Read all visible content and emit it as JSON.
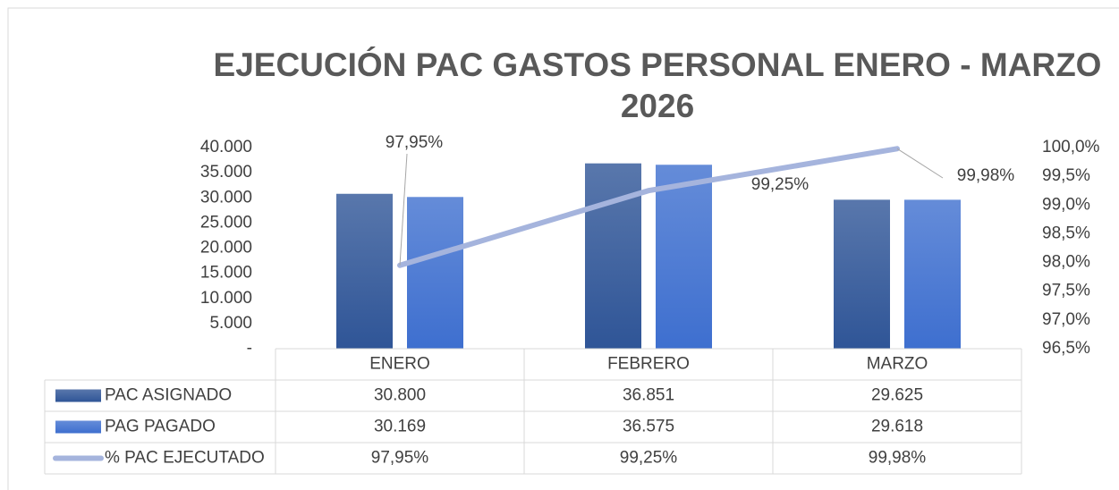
{
  "chart_data": {
    "type": "bar",
    "title": "EJECUCIÓN PAC GASTOS PERSONAL ENERO - MARZO 2026",
    "categories": [
      "ENERO",
      "FEBRERO",
      "MARZO"
    ],
    "series": [
      {
        "name": "PAC ASIGNADO",
        "color": "#2f5597",
        "type": "bar",
        "values": [
          30800,
          36851,
          29625
        ],
        "value_labels": [
          "30.800",
          "36.851",
          "29.625"
        ]
      },
      {
        "name": "PAG PAGADO",
        "color": "#3e6fcf",
        "type": "bar",
        "values": [
          30169,
          36575,
          29618
        ],
        "value_labels": [
          "30.169",
          "36.575",
          "29.618"
        ]
      },
      {
        "name": "% PAC EJECUTADO",
        "color": "#a5b4dd",
        "type": "line",
        "axis": "y2",
        "values": [
          97.95,
          99.25,
          99.98
        ],
        "value_labels": [
          "97,95%",
          "99,25%",
          "99,98%"
        ]
      }
    ],
    "ylim": [
      0,
      40000
    ],
    "yticks": [
      {
        "value": 0,
        "label": "-"
      },
      {
        "value": 5000,
        "label": "5.000"
      },
      {
        "value": 10000,
        "label": "10.000"
      },
      {
        "value": 15000,
        "label": "15.000"
      },
      {
        "value": 20000,
        "label": "20.000"
      },
      {
        "value": 25000,
        "label": "25.000"
      },
      {
        "value": 30000,
        "label": "30.000"
      },
      {
        "value": 35000,
        "label": "35.000"
      },
      {
        "value": 40000,
        "label": "40.000"
      }
    ],
    "y2lim": [
      96.5,
      100
    ],
    "y2ticks": [
      {
        "value": 96.5,
        "label": "96,5%"
      },
      {
        "value": 97,
        "label": "97,0%"
      },
      {
        "value": 97.5,
        "label": "97,5%"
      },
      {
        "value": 98,
        "label": "98,0%"
      },
      {
        "value": 98.5,
        "label": "98,5%"
      },
      {
        "value": 99,
        "label": "99,0%"
      },
      {
        "value": 99.5,
        "label": "99,5%"
      },
      {
        "value": 100,
        "label": "100,0%"
      }
    ],
    "data_table": true
  }
}
